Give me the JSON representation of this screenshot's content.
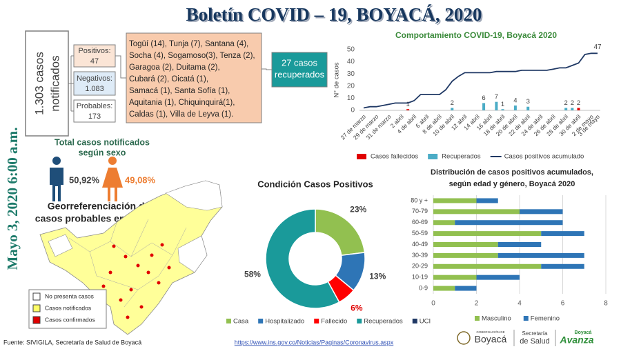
{
  "header": {
    "title": "Boletín COVID – 19, BOYACÁ, 2020",
    "date": "Mayo 3, 2020 6:00 a.m."
  },
  "summary": {
    "total": [
      "1.303 casos",
      "notificados"
    ],
    "positivos": {
      "label": "Positivos:",
      "value": "47"
    },
    "negativos": {
      "label": "Negativos:",
      "value": "1.083"
    },
    "probables": {
      "label": "Probables:",
      "value": "173"
    },
    "municipios": [
      "Togüí (14), Tunja (7), Santana (4),",
      "Socha (4), Sogamoso(3), Tenza (2),",
      "Garagoa (2), Duitama (2),",
      "Cubará (2), Oicatá (1),",
      "Samacá (1), Santa Sofía (1),",
      "Aquitania (1), Chiquinquirá(1),",
      "Caldas (1), Villa de Leyva (1)."
    ],
    "recuperados": [
      "27 casos",
      "recuperados"
    ]
  },
  "sexo": {
    "title": [
      "Total casos notificados",
      "según sexo"
    ],
    "male": "50,92%",
    "female": "49,08%"
  },
  "map": {
    "title": [
      "Georreferenciación de",
      "casos probables en Boyacá"
    ],
    "legend": [
      "No presenta casos",
      "Casos notificados",
      "Casos confirmados"
    ]
  },
  "footer": {
    "source": "Fuente: SIVIGILA, Secretaría de Salud de Boyacá",
    "url": "https://www.ins.gov.co/Noticias/Paginas/Coronavirus.aspx",
    "logo1": [
      "GOBERNACIÓN DE",
      "Boyacá"
    ],
    "logo2": [
      "Secretaría",
      "de Salud"
    ],
    "logo3": [
      "Boyacá",
      "Avanza"
    ]
  },
  "chart_data": [
    {
      "type": "line",
      "title": "Comportamiento COVID-19, Boyacá 2020",
      "y_label": "N° de casos",
      "categories": [
        "27 de marzo",
        null,
        "29 de marzo",
        null,
        "31 de marzo",
        null,
        "2 abril",
        null,
        "4 de abril",
        null,
        "6 abril",
        null,
        "8 de abril",
        null,
        "10 de abril",
        null,
        "12 abril",
        null,
        "14 abril",
        null,
        "16 abril",
        null,
        "18 de abril",
        null,
        "20 de abril",
        null,
        "22 de abril",
        null,
        "24 de abril",
        null,
        "26 de abril",
        null,
        "28 de abril",
        null,
        "30 de abril",
        null,
        "2 de mayo",
        "3 de mayo"
      ],
      "series": [
        {
          "name": "Casos fallecidos",
          "type": "bar",
          "color": "#e00000",
          "values": [
            null,
            null,
            null,
            null,
            null,
            null,
            null,
            1,
            null,
            null,
            null,
            null,
            null,
            null,
            null,
            null,
            null,
            null,
            null,
            null,
            null,
            null,
            null,
            null,
            null,
            null,
            null,
            null,
            null,
            null,
            null,
            null,
            null,
            null,
            2,
            null,
            null,
            null
          ]
        },
        {
          "name": "Recuperados",
          "type": "bar",
          "color": "#4bacc6",
          "values": [
            null,
            null,
            null,
            null,
            null,
            null,
            null,
            null,
            null,
            null,
            null,
            null,
            null,
            null,
            2,
            null,
            null,
            null,
            null,
            6,
            null,
            7,
            1,
            null,
            4,
            null,
            3,
            null,
            null,
            null,
            null,
            null,
            2,
            2,
            null,
            null,
            null,
            null
          ]
        },
        {
          "name": "Casos positivos acumulado",
          "type": "line",
          "color": "#1f3864",
          "last_value_label": true,
          "values": [
            2,
            3,
            3,
            4,
            5,
            6,
            6,
            6,
            8,
            13,
            13,
            13,
            13,
            17,
            24,
            28,
            31,
            31,
            31,
            31,
            31,
            32,
            32,
            32,
            32,
            33,
            33,
            33,
            33,
            33,
            34,
            35,
            35,
            37,
            39,
            46,
            47,
            47
          ]
        }
      ],
      "ylim": [
        0,
        50
      ],
      "yticks": [
        0,
        10,
        20,
        30,
        40,
        50
      ],
      "grid": false,
      "legend": "bottom"
    },
    {
      "type": "pie",
      "title": "Condición Casos Positivos",
      "categories": [
        "Casa",
        "Hospitalizado",
        "Fallecido",
        "Recuperados",
        "UCI"
      ],
      "values": [
        23,
        13,
        6,
        58,
        0
      ],
      "value_labels": [
        "23%",
        "13%",
        "6%",
        "58%",
        null
      ],
      "colors": [
        "#92c050",
        "#2e75b6",
        "#ff0000",
        "#1a9a9a",
        "#1f3864"
      ],
      "donut": true,
      "legend": "bottom"
    },
    {
      "type": "bar",
      "orientation": "horizontal",
      "stacked": true,
      "title": [
        "Distribución de casos positivos acumulados,",
        "según edad y género, Boyacá 2020"
      ],
      "categories": [
        "80 y +",
        "70-79",
        "60-69",
        "50-59",
        "40-49",
        "30-39",
        "20-29",
        "10-19",
        "0-9"
      ],
      "series": [
        {
          "name": "Masculino",
          "color": "#92c050",
          "values": [
            2,
            4,
            1,
            5,
            3,
            3,
            5,
            2,
            1
          ]
        },
        {
          "name": "Femenino",
          "color": "#2e75b6",
          "values": [
            1,
            2,
            5,
            2,
            2,
            4,
            2,
            2,
            1
          ]
        }
      ],
      "xlim": [
        0,
        8
      ],
      "xticks": [
        0,
        2,
        4,
        6,
        8
      ],
      "grid": true,
      "legend": "bottom"
    }
  ]
}
